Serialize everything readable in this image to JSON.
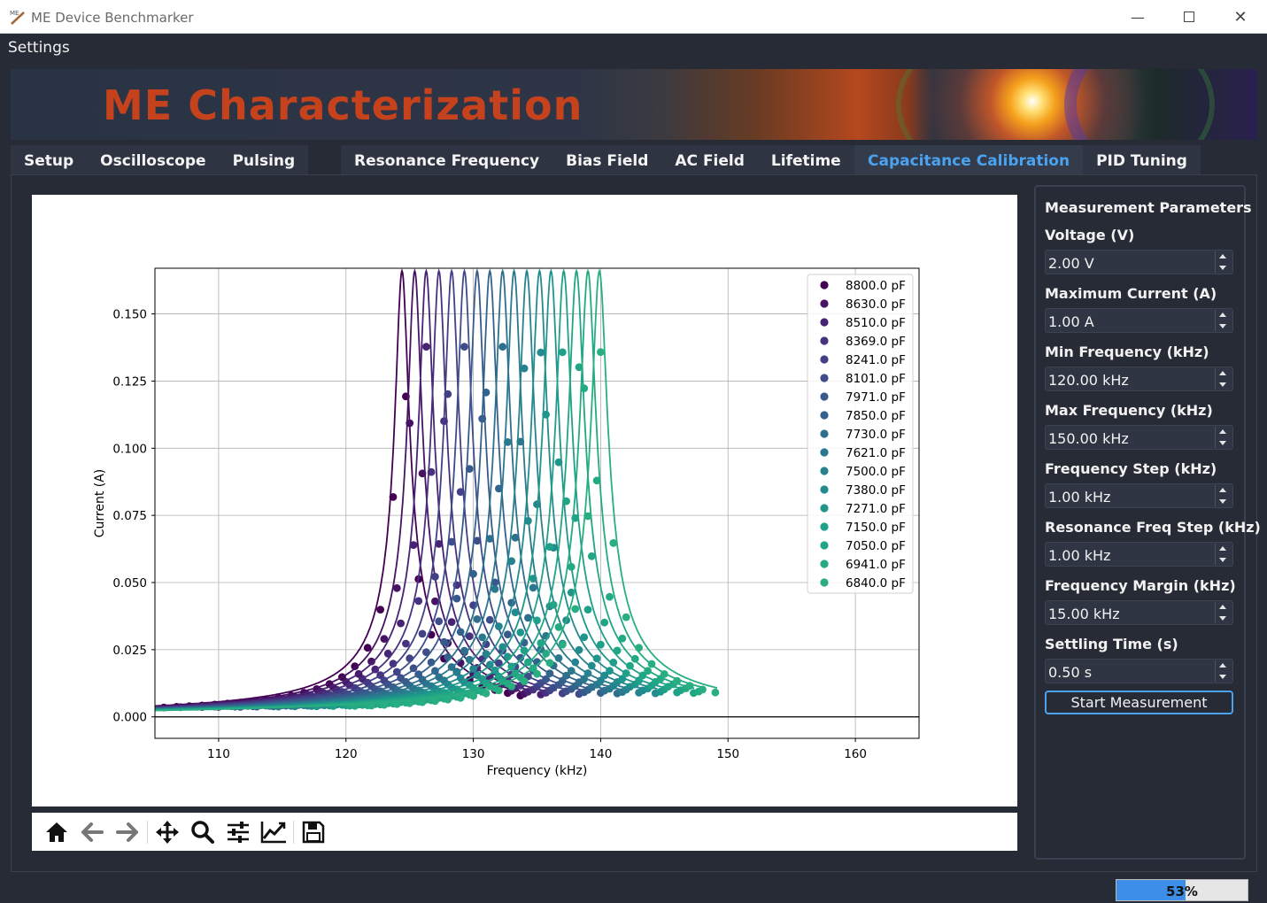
{
  "window": {
    "title": "ME Device Benchmarker",
    "minimize": "—",
    "close": "✕"
  },
  "menu": {
    "settings": "Settings"
  },
  "banner": {
    "title": "ME Characterization"
  },
  "tabs": {
    "group1": [
      "Setup",
      "Oscilloscope",
      "Pulsing"
    ],
    "group2": [
      "Resonance Frequency",
      "Bias Field",
      "AC Field",
      "Lifetime"
    ],
    "group3": [
      "Capacitance Calibration",
      "PID Tuning"
    ],
    "active": "Capacitance Calibration"
  },
  "params": {
    "title": "Measurement Parameters",
    "fields": [
      {
        "label": "Voltage (V)",
        "value": "2.00 V"
      },
      {
        "label": "Maximum Current (A)",
        "value": "1.00 A"
      },
      {
        "label": "Min Frequency (kHz)",
        "value": "120.00 kHz"
      },
      {
        "label": "Max Frequency (kHz)",
        "value": "150.00 kHz"
      },
      {
        "label": "Frequency Step (kHz)",
        "value": "1.00 kHz"
      },
      {
        "label": "Resonance Freq Step (kHz)",
        "value": "1.00 kHz"
      },
      {
        "label": "Frequency Margin (kHz)",
        "value": "15.00 kHz"
      },
      {
        "label": "Settling Time (s)",
        "value": "0.50 s"
      }
    ],
    "start_button": "Start Measurement"
  },
  "toolbar": {
    "icons": [
      "home-icon",
      "back-icon",
      "forward-icon",
      "pan-icon",
      "zoom-icon",
      "configure-subplots-icon",
      "edit-axis-icon",
      "save-icon"
    ]
  },
  "status": {
    "progress_value": 0.53,
    "progress_text": "53%"
  },
  "chart_data": {
    "type": "line",
    "title": "",
    "xlabel": "Frequency (kHz)",
    "ylabel": "Current (A)",
    "xlim": [
      105,
      165
    ],
    "ylim": [
      -0.008,
      0.167
    ],
    "xticks": [
      110,
      120,
      130,
      140,
      150,
      160
    ],
    "yticks": [
      0.0,
      0.025,
      0.05,
      0.075,
      0.1,
      0.125,
      0.15
    ],
    "ytick_labels": [
      "0.000",
      "0.025",
      "0.050",
      "0.075",
      "0.100",
      "0.125",
      "0.150"
    ],
    "grid": true,
    "legend_position": "top-right",
    "peak_current": 0.166,
    "series": [
      {
        "name": "8800.0 pF",
        "color": "#440154",
        "resonance": 124.4
      },
      {
        "name": "8630.0 pF",
        "color": "#471365",
        "resonance": 125.4
      },
      {
        "name": "8510.0 pF",
        "color": "#482374",
        "resonance": 126.3
      },
      {
        "name": "8369.0 pF",
        "color": "#46327e",
        "resonance": 127.3
      },
      {
        "name": "8241.0 pF",
        "color": "#424086",
        "resonance": 128.3
      },
      {
        "name": "8101.0 pF",
        "color": "#3e4c8a",
        "resonance": 129.3
      },
      {
        "name": "7971.0 pF",
        "color": "#38598c",
        "resonance": 130.3
      },
      {
        "name": "7850.0 pF",
        "color": "#33638d",
        "resonance": 131.3
      },
      {
        "name": "7730.0 pF",
        "color": "#2e6f8e",
        "resonance": 132.3
      },
      {
        "name": "7621.0 pF",
        "color": "#2a788e",
        "resonance": 133.2
      },
      {
        "name": "7500.0 pF",
        "color": "#26828e",
        "resonance": 134.2
      },
      {
        "name": "7380.0 pF",
        "color": "#228b8d",
        "resonance": 135.2
      },
      {
        "name": "7271.0 pF",
        "color": "#1f968b",
        "resonance": 136.1
      },
      {
        "name": "7150.0 pF",
        "color": "#1fa088",
        "resonance": 137.1
      },
      {
        "name": "7050.0 pF",
        "color": "#21a685",
        "resonance": 138.1
      },
      {
        "name": "6941.0 pF",
        "color": "#24aa83",
        "resonance": 139.0
      },
      {
        "name": "6840.0 pF",
        "color": "#28ae80",
        "resonance": 139.9
      }
    ]
  }
}
